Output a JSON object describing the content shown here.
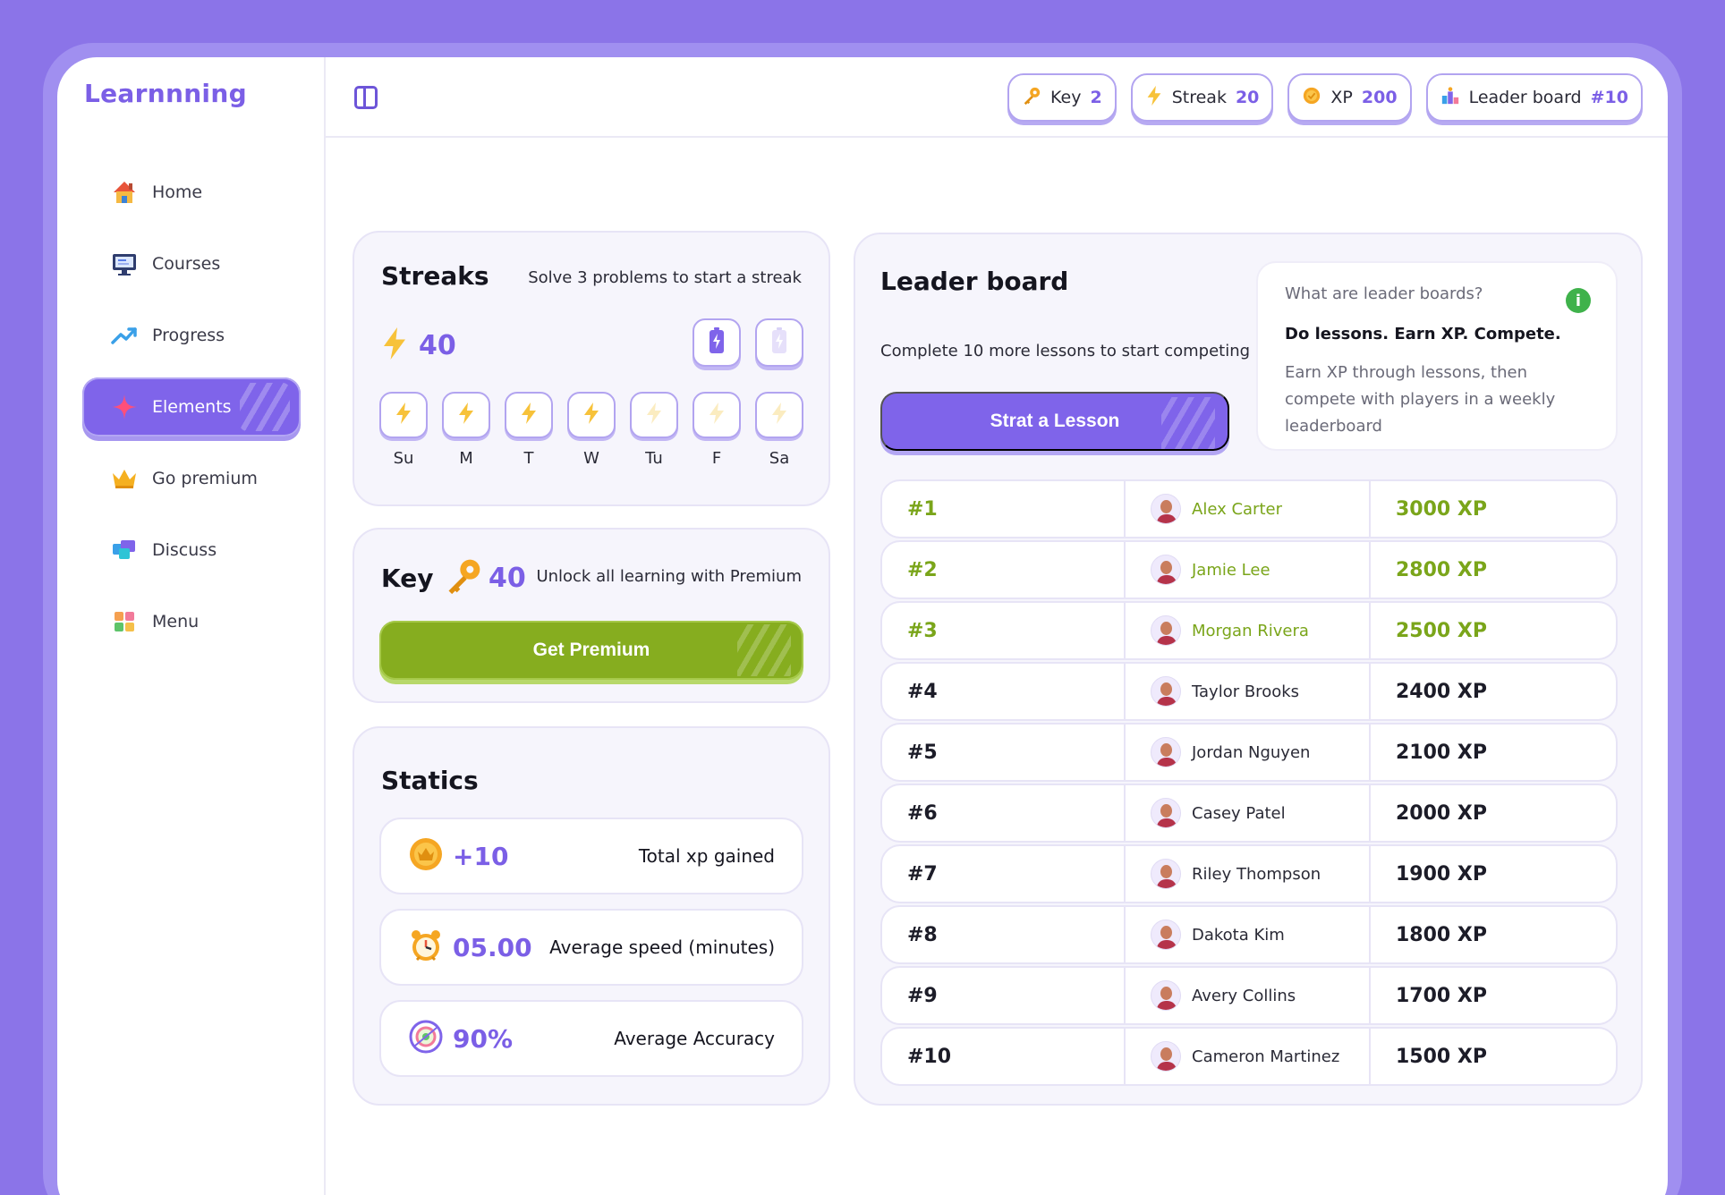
{
  "brand": "Learnnning",
  "sidebar": {
    "items": [
      {
        "label": "Home",
        "icon": "house-icon"
      },
      {
        "label": "Courses",
        "icon": "monitor-icon"
      },
      {
        "label": "Progress",
        "icon": "trend-up-icon"
      },
      {
        "label": "Elements",
        "icon": "sparkle-icon",
        "active": true
      },
      {
        "label": "Go premium",
        "icon": "crown-icon"
      },
      {
        "label": "Discuss",
        "icon": "chat-bubbles-icon"
      },
      {
        "label": "Menu",
        "icon": "grid-icon"
      }
    ]
  },
  "topbar": {
    "chips": [
      {
        "label": "Key",
        "value": "2",
        "icon": "key-icon"
      },
      {
        "label": "Streak",
        "value": "20",
        "icon": "lightning-icon"
      },
      {
        "label": "XP",
        "value": "200",
        "icon": "coin-icon"
      },
      {
        "label": "Leader board",
        "value": "#10",
        "icon": "podium-icon"
      }
    ]
  },
  "streaks": {
    "title": "Streaks",
    "hint": "Solve 3 problems to start a streak",
    "count": "40",
    "days": [
      {
        "label": "Su",
        "active": true
      },
      {
        "label": "M",
        "active": true
      },
      {
        "label": "T",
        "active": true
      },
      {
        "label": "W",
        "active": true
      },
      {
        "label": "Tu",
        "active": false
      },
      {
        "label": "F",
        "active": false
      },
      {
        "label": "Sa",
        "active": false
      }
    ]
  },
  "key": {
    "title": "Key",
    "count": "40",
    "hint": "Unlock all learning with Premium",
    "button": "Get Premium"
  },
  "statics": {
    "title": "Statics",
    "rows": [
      {
        "value": "+10",
        "label": "Total xp gained",
        "icon": "crown-coin-icon"
      },
      {
        "value": "05.00",
        "label": "Average speed (minutes)",
        "icon": "alarm-clock-icon"
      },
      {
        "value": "90%",
        "label": "Average Accuracy",
        "icon": "target-icon"
      }
    ]
  },
  "leaderboard": {
    "title": "Leader board",
    "subtitle": "Complete 10 more lessons to start competing",
    "button": "Strat a Lesson",
    "info": {
      "question": "What are leader boards?",
      "headline": "Do lessons. Earn XP. Compete.",
      "body": "Earn XP through lessons, then compete with players in a weekly leaderboard"
    },
    "rows": [
      {
        "rank": "#1",
        "name": "Alex Carter",
        "xp": "3000 XP"
      },
      {
        "rank": "#2",
        "name": "Jamie Lee",
        "xp": "2800 XP"
      },
      {
        "rank": "#3",
        "name": "Morgan Rivera",
        "xp": "2500 XP"
      },
      {
        "rank": "#4",
        "name": "Taylor Brooks",
        "xp": "2400 XP"
      },
      {
        "rank": "#5",
        "name": "Jordan Nguyen",
        "xp": "2100 XP"
      },
      {
        "rank": "#6",
        "name": "Casey Patel",
        "xp": "2000 XP"
      },
      {
        "rank": "#7",
        "name": "Riley Thompson",
        "xp": "1900 XP"
      },
      {
        "rank": "#8",
        "name": "Dakota Kim",
        "xp": "1800 XP"
      },
      {
        "rank": "#9",
        "name": "Avery Collins",
        "xp": "1700 XP"
      },
      {
        "rank": "#10",
        "name": "Cameron Martinez",
        "xp": "1500 XP"
      }
    ]
  },
  "colors": {
    "accent": "#7f64ea",
    "premium_green": "#86ad1f",
    "top_rank": "#7aa51a",
    "background": "#8b74e8"
  }
}
